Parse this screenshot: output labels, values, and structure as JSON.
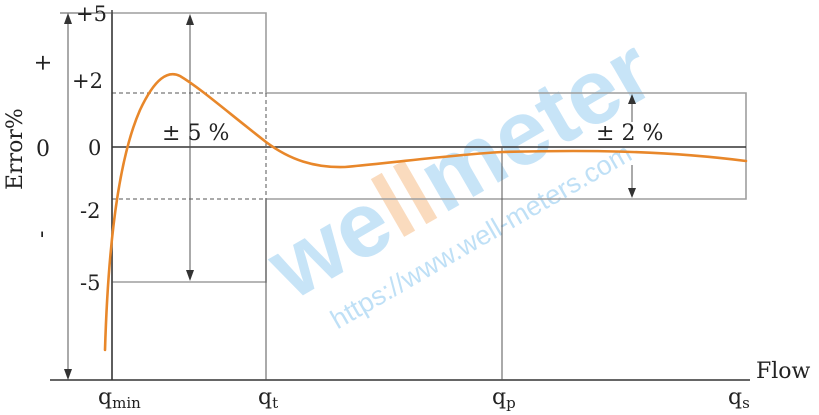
{
  "axis": {
    "y_label": "Error%",
    "x_label": "Flow",
    "plus_sign": "+",
    "minus_sign": "-",
    "zero_label": "0"
  },
  "y_ticks": [
    "+5",
    "+2",
    "0",
    "-2",
    "-5"
  ],
  "x_ticks": [
    {
      "base": "q",
      "sub": "min"
    },
    {
      "base": "q",
      "sub": "t"
    },
    {
      "base": "q",
      "sub": "p"
    },
    {
      "base": "q",
      "sub": "s"
    }
  ],
  "zones": {
    "low": {
      "prefix": "±",
      "value": "5",
      "unit": "%"
    },
    "high": {
      "prefix": "±",
      "value": "2",
      "unit": "%"
    }
  },
  "watermark": {
    "brand_a": "we",
    "brand_b": "ll",
    "brand_c": "meter",
    "url": "https://www.well-meters.com"
  },
  "colors": {
    "curve": "#e8872a",
    "envelope": "#9e9e9e",
    "watermark": "#4aa8e8",
    "watermark_accent": "#f08a2a"
  }
}
